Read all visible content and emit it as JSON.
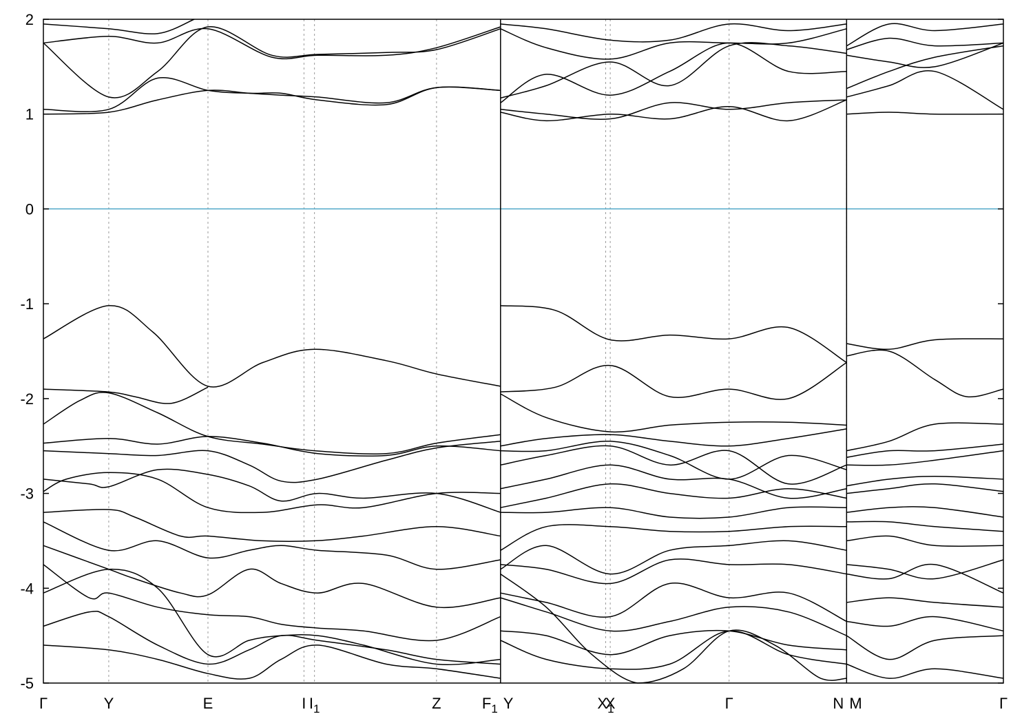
{
  "chart_data": {
    "type": "line",
    "title": "",
    "xlabel": "",
    "ylabel": "",
    "ylim": [
      -5,
      2
    ],
    "y_ticks": [
      "2",
      "1",
      "0",
      "-1",
      "-2",
      "-3",
      "-4",
      "-5"
    ],
    "k_points": [
      {
        "label": "Γ",
        "x": 0
      },
      {
        "label": "Y",
        "x": 0.143
      },
      {
        "label": "E",
        "x": 0.36
      },
      {
        "label": "I",
        "x": 0.57
      },
      {
        "label": "I",
        "sub": "1",
        "x": 0.593
      },
      {
        "label": "Z",
        "x": 0.86
      },
      {
        "label": "F",
        "sub": "1",
        "x": 1.0
      },
      {
        "label": "Y",
        "x": 1.0
      },
      {
        "label": "X",
        "sub": "1",
        "x": 1.23
      },
      {
        "label": "X",
        "x": 1.24
      },
      {
        "label": "Γ",
        "x": 1.5
      },
      {
        "label": "N",
        "x": 1.757
      },
      {
        "label": "M",
        "x": 1.757
      },
      {
        "label": "Γ",
        "x": 2.1
      }
    ],
    "segment_breaks": [
      1.0,
      1.757
    ],
    "fermi_level": {
      "y": 0,
      "color": "#4fa8c8"
    },
    "line_color": "#000000",
    "grid": "vertical-dotted-at-k-points",
    "series": [
      {
        "x": [
          0,
          0.143,
          0.24,
          0.36,
          0.48,
          0.593,
          0.75,
          0.86,
          1.0
        ],
        "y": [
          -1.37,
          -1.02,
          -1.3,
          -1.87,
          -1.62,
          -1.48,
          -1.6,
          -1.74,
          -1.87
        ]
      },
      {
        "x": [
          0,
          0.143,
          0.2,
          0.28,
          0.36
        ],
        "y": [
          -1.9,
          -1.93,
          -1.98,
          -2.05,
          -1.88
        ]
      },
      {
        "x": [
          0,
          0.08,
          0.143,
          0.25,
          0.36,
          0.48,
          0.593,
          0.75,
          0.86,
          1.0
        ],
        "y": [
          -2.27,
          -2.02,
          -1.94,
          -2.15,
          -2.4,
          -2.48,
          -2.55,
          -2.58,
          -2.47,
          -2.38
        ]
      },
      {
        "x": [
          0,
          0.143,
          0.25,
          0.36,
          0.48,
          0.6,
          0.75,
          0.86,
          1.0
        ],
        "y": [
          -2.47,
          -2.42,
          -2.48,
          -2.4,
          -2.47,
          -2.58,
          -2.6,
          -2.5,
          -2.55
        ]
      },
      {
        "x": [
          0,
          0.143,
          0.25,
          0.36,
          0.45,
          0.52,
          0.6,
          0.75,
          0.86,
          1.0
        ],
        "y": [
          -2.55,
          -2.58,
          -2.6,
          -2.55,
          -2.7,
          -2.87,
          -2.85,
          -2.65,
          -2.52,
          -2.45
        ]
      },
      {
        "x": [
          0,
          0.1,
          0.143,
          0.25,
          0.36,
          0.45,
          0.52,
          0.6,
          0.7,
          0.86,
          1.0
        ],
        "y": [
          -2.85,
          -2.9,
          -2.93,
          -2.75,
          -2.8,
          -2.92,
          -3.08,
          -3.0,
          -3.05,
          -3.0,
          -3.2
        ]
      },
      {
        "x": [
          0,
          0.05,
          0.143,
          0.25,
          0.36,
          0.48,
          0.6,
          0.7,
          0.86,
          1.0
        ],
        "y": [
          -2.98,
          -2.85,
          -2.78,
          -2.85,
          -3.15,
          -3.2,
          -3.12,
          -3.15,
          -3.0,
          -3.0
        ]
      },
      {
        "x": [
          0,
          0.143,
          0.2,
          0.3,
          0.36,
          0.48,
          0.593,
          0.7,
          0.86,
          1.0
        ],
        "y": [
          -3.2,
          -3.17,
          -3.25,
          -3.45,
          -3.45,
          -3.5,
          -3.5,
          -3.45,
          -3.35,
          -3.45
        ]
      },
      {
        "x": [
          0,
          0.143,
          0.25,
          0.36,
          0.45,
          0.52,
          0.6,
          0.75,
          0.86,
          1.0
        ],
        "y": [
          -3.3,
          -3.6,
          -3.5,
          -3.68,
          -3.6,
          -3.55,
          -3.6,
          -3.65,
          -3.8,
          -3.7
        ]
      },
      {
        "x": [
          0,
          0.143,
          0.2,
          0.3,
          0.36,
          0.45,
          0.52,
          0.6,
          0.7,
          0.86,
          1.0
        ],
        "y": [
          -3.55,
          -3.8,
          -3.9,
          -4.05,
          -4.07,
          -3.8,
          -3.95,
          -4.05,
          -3.95,
          -4.2,
          -4.1
        ]
      },
      {
        "x": [
          0,
          0.1,
          0.143,
          0.25,
          0.36,
          0.45,
          0.52,
          0.6,
          0.7,
          0.86,
          1.0
        ],
        "y": [
          -3.75,
          -4.1,
          -4.05,
          -4.2,
          -4.28,
          -4.3,
          -4.38,
          -4.42,
          -4.45,
          -4.55,
          -4.3
        ]
      },
      {
        "x": [
          0,
          0.143,
          0.25,
          0.36,
          0.45,
          0.52,
          0.6,
          0.7,
          0.86,
          1.0
        ],
        "y": [
          -4.05,
          -3.8,
          -4.0,
          -4.7,
          -4.55,
          -4.5,
          -4.5,
          -4.6,
          -4.8,
          -4.75
        ]
      },
      {
        "x": [
          0,
          0.1,
          0.143,
          0.25,
          0.36,
          0.45,
          0.52,
          0.6,
          0.75,
          0.86,
          1.0
        ],
        "y": [
          -4.4,
          -4.25,
          -4.3,
          -4.6,
          -4.8,
          -4.65,
          -4.5,
          -4.55,
          -4.65,
          -4.75,
          -4.8
        ]
      },
      {
        "x": [
          0,
          0.143,
          0.25,
          0.36,
          0.45,
          0.52,
          0.6,
          0.75,
          0.86,
          1.0
        ],
        "y": [
          -4.6,
          -4.65,
          -4.75,
          -4.9,
          -4.95,
          -4.75,
          -4.6,
          -4.8,
          -4.85,
          -4.95
        ]
      },
      {
        "x": [
          0,
          0.143,
          0.25,
          0.36,
          0.45,
          0.52,
          0.6,
          0.75,
          0.86,
          1.0
        ],
        "y": [
          1.0,
          1.02,
          1.15,
          1.25,
          1.22,
          1.2,
          1.18,
          1.12,
          1.28,
          1.25
        ]
      },
      {
        "x": [
          0,
          0.143,
          0.25,
          0.36,
          0.45,
          0.52,
          0.6,
          0.75,
          0.86,
          1.0
        ],
        "y": [
          1.05,
          1.05,
          1.38,
          1.25,
          1.22,
          1.22,
          1.15,
          1.1,
          1.28,
          1.25
        ]
      },
      {
        "x": [
          0,
          0.143,
          0.25,
          0.36,
          0.5,
          0.6,
          0.75,
          0.86,
          1.0
        ],
        "y": [
          1.75,
          1.18,
          1.45,
          1.92,
          1.62,
          1.63,
          1.65,
          1.68,
          1.9
        ]
      },
      {
        "x": [
          0,
          0.143,
          0.25,
          0.36,
          0.5,
          0.6,
          0.75,
          0.86,
          1.0
        ],
        "y": [
          1.75,
          1.82,
          1.75,
          1.9,
          1.6,
          1.62,
          1.62,
          1.7,
          1.92
        ]
      },
      {
        "x": [
          0,
          0.143,
          0.25,
          0.33
        ],
        "y": [
          1.95,
          1.9,
          1.85,
          2.0
        ]
      },
      {
        "x": [
          1.0,
          1.12,
          1.24,
          1.37,
          1.5,
          1.63,
          1.757
        ],
        "y": [
          -1.02,
          -1.07,
          -1.38,
          -1.33,
          -1.37,
          -1.25,
          -1.62
        ]
      },
      {
        "x": [
          1.0,
          1.12,
          1.24,
          1.37,
          1.5,
          1.63,
          1.757
        ],
        "y": [
          -1.93,
          -1.88,
          -1.65,
          -1.98,
          -1.9,
          -2.0,
          -1.62
        ]
      },
      {
        "x": [
          1.0,
          1.1,
          1.24,
          1.37,
          1.5,
          1.63,
          1.757
        ],
        "y": [
          -1.95,
          -2.2,
          -2.35,
          -2.28,
          -2.25,
          -2.25,
          -2.28
        ]
      },
      {
        "x": [
          1.0,
          1.1,
          1.24,
          1.37,
          1.5,
          1.63,
          1.757
        ],
        "y": [
          -2.5,
          -2.42,
          -2.38,
          -2.45,
          -2.5,
          -2.42,
          -2.32
        ]
      },
      {
        "x": [
          1.0,
          1.1,
          1.24,
          1.37,
          1.5,
          1.63,
          1.757
        ],
        "y": [
          -2.55,
          -2.55,
          -2.45,
          -2.6,
          -2.85,
          -2.6,
          -2.75
        ]
      },
      {
        "x": [
          1.0,
          1.1,
          1.24,
          1.37,
          1.5,
          1.63,
          1.757
        ],
        "y": [
          -2.7,
          -2.6,
          -2.5,
          -2.7,
          -2.55,
          -2.9,
          -2.7
        ]
      },
      {
        "x": [
          1.0,
          1.1,
          1.24,
          1.37,
          1.5,
          1.63,
          1.757
        ],
        "y": [
          -2.95,
          -2.85,
          -2.7,
          -2.85,
          -2.85,
          -3.05,
          -2.95
        ]
      },
      {
        "x": [
          1.0,
          1.1,
          1.24,
          1.37,
          1.5,
          1.63,
          1.757
        ],
        "y": [
          -3.15,
          -3.05,
          -2.9,
          -3.0,
          -3.05,
          -2.95,
          -3.05
        ]
      },
      {
        "x": [
          1.0,
          1.1,
          1.24,
          1.37,
          1.5,
          1.63,
          1.757
        ],
        "y": [
          -3.2,
          -3.2,
          -3.15,
          -3.25,
          -3.25,
          -3.15,
          -3.15
        ]
      },
      {
        "x": [
          1.0,
          1.1,
          1.24,
          1.37,
          1.5,
          1.63,
          1.757
        ],
        "y": [
          -3.6,
          -3.35,
          -3.35,
          -3.4,
          -3.4,
          -3.35,
          -3.35
        ]
      },
      {
        "x": [
          1.0,
          1.1,
          1.24,
          1.37,
          1.5,
          1.63,
          1.757
        ],
        "y": [
          -3.8,
          -3.55,
          -3.85,
          -3.6,
          -3.55,
          -3.5,
          -3.6
        ]
      },
      {
        "x": [
          1.0,
          1.1,
          1.24,
          1.37,
          1.5,
          1.63,
          1.757
        ],
        "y": [
          -3.75,
          -3.8,
          -3.95,
          -3.7,
          -3.75,
          -3.75,
          -3.85
        ]
      },
      {
        "x": [
          1.0,
          1.1,
          1.24,
          1.37,
          1.5,
          1.63,
          1.757
        ],
        "y": [
          -4.05,
          -4.15,
          -4.3,
          -3.95,
          -4.1,
          -4.05,
          -4.35
        ]
      },
      {
        "x": [
          1.0,
          1.1,
          1.24,
          1.37,
          1.5,
          1.63,
          1.757
        ],
        "y": [
          -4.1,
          -4.25,
          -4.45,
          -4.35,
          -4.2,
          -4.25,
          -4.5
        ]
      },
      {
        "x": [
          1.0,
          1.1,
          1.24,
          1.37,
          1.5,
          1.63,
          1.757
        ],
        "y": [
          -4.45,
          -4.5,
          -4.7,
          -4.5,
          -4.45,
          -4.6,
          -4.65
        ]
      },
      {
        "x": [
          1.0,
          1.1,
          1.24,
          1.37,
          1.5,
          1.63,
          1.757
        ],
        "y": [
          -4.55,
          -4.75,
          -4.85,
          -4.8,
          -4.45,
          -4.7,
          -4.8
        ]
      },
      {
        "x": [
          1.0,
          1.1,
          1.2,
          1.3,
          1.4,
          1.5,
          1.6,
          1.7,
          1.757
        ],
        "y": [
          -3.85,
          -4.2,
          -4.7,
          -5.0,
          -4.85,
          -4.45,
          -4.6,
          -4.95,
          -4.95
        ]
      },
      {
        "x": [
          1.0,
          1.1,
          1.24,
          1.37,
          1.5,
          1.63,
          1.757
        ],
        "y": [
          1.05,
          1.0,
          0.95,
          1.12,
          1.05,
          1.12,
          1.15
        ]
      },
      {
        "x": [
          1.0,
          1.1,
          1.24,
          1.37,
          1.5,
          1.63,
          1.757
        ],
        "y": [
          1.02,
          0.93,
          1.0,
          0.95,
          1.08,
          0.93,
          1.15
        ]
      },
      {
        "x": [
          1.0,
          1.1,
          1.24,
          1.37,
          1.5,
          1.63,
          1.757
        ],
        "y": [
          1.12,
          1.42,
          1.2,
          1.45,
          1.75,
          1.45,
          1.45
        ]
      },
      {
        "x": [
          1.0,
          1.1,
          1.24,
          1.37,
          1.5,
          1.63,
          1.757
        ],
        "y": [
          1.17,
          1.3,
          1.55,
          1.3,
          1.72,
          1.72,
          1.64
        ]
      },
      {
        "x": [
          1.0,
          1.1,
          1.24,
          1.37,
          1.5,
          1.63,
          1.757
        ],
        "y": [
          1.9,
          1.7,
          1.58,
          1.75,
          1.75,
          1.75,
          1.9
        ]
      },
      {
        "x": [
          1.0,
          1.1,
          1.24,
          1.37,
          1.5,
          1.63,
          1.757
        ],
        "y": [
          1.95,
          1.9,
          1.78,
          1.78,
          1.95,
          1.88,
          1.95
        ]
      },
      {
        "x": [
          1.757,
          1.85,
          1.95,
          2.1
        ],
        "y": [
          -1.42,
          -1.48,
          -1.38,
          -1.37
        ]
      },
      {
        "x": [
          1.757,
          1.85,
          1.95,
          2.02,
          2.1
        ],
        "y": [
          -1.55,
          -1.5,
          -1.8,
          -1.98,
          -1.9
        ]
      },
      {
        "x": [
          1.757,
          1.85,
          1.95,
          2.1
        ],
        "y": [
          -2.55,
          -2.45,
          -2.27,
          -2.27
        ]
      },
      {
        "x": [
          1.757,
          1.85,
          1.95,
          2.1
        ],
        "y": [
          -2.62,
          -2.55,
          -2.55,
          -2.48
        ]
      },
      {
        "x": [
          1.757,
          1.85,
          1.95,
          2.1
        ],
        "y": [
          -2.7,
          -2.7,
          -2.65,
          -2.55
        ]
      },
      {
        "x": [
          1.757,
          1.85,
          1.95,
          2.1
        ],
        "y": [
          -2.92,
          -2.85,
          -2.82,
          -2.85
        ]
      },
      {
        "x": [
          1.757,
          1.85,
          1.95,
          2.1
        ],
        "y": [
          -3.0,
          -2.95,
          -2.9,
          -2.98
        ]
      },
      {
        "x": [
          1.757,
          1.85,
          1.95,
          2.1
        ],
        "y": [
          -3.2,
          -3.15,
          -3.15,
          -3.25
        ]
      },
      {
        "x": [
          1.757,
          1.85,
          1.95,
          2.1
        ],
        "y": [
          -3.3,
          -3.3,
          -3.35,
          -3.4
        ]
      },
      {
        "x": [
          1.757,
          1.85,
          1.95,
          2.1
        ],
        "y": [
          -3.5,
          -3.45,
          -3.55,
          -3.55
        ]
      },
      {
        "x": [
          1.757,
          1.85,
          1.95,
          2.1
        ],
        "y": [
          -3.75,
          -3.8,
          -3.9,
          -3.7
        ]
      },
      {
        "x": [
          1.757,
          1.85,
          1.95,
          2.1
        ],
        "y": [
          -3.85,
          -3.9,
          -3.75,
          -4.05
        ]
      },
      {
        "x": [
          1.757,
          1.85,
          1.95,
          2.1
        ],
        "y": [
          -4.15,
          -4.1,
          -4.15,
          -4.2
        ]
      },
      {
        "x": [
          1.757,
          1.85,
          1.95,
          2.1
        ],
        "y": [
          -4.35,
          -4.4,
          -4.3,
          -4.45
        ]
      },
      {
        "x": [
          1.757,
          1.85,
          1.95,
          2.1
        ],
        "y": [
          -4.5,
          -4.75,
          -4.55,
          -4.5
        ]
      },
      {
        "x": [
          1.757,
          1.85,
          1.95,
          2.1
        ],
        "y": [
          -4.8,
          -4.95,
          -4.85,
          -4.95
        ]
      },
      {
        "x": [
          1.757,
          1.85,
          1.95,
          2.1
        ],
        "y": [
          1.0,
          1.02,
          1.0,
          1.0
        ]
      },
      {
        "x": [
          1.757,
          1.85,
          1.95,
          2.1
        ],
        "y": [
          1.18,
          1.3,
          1.45,
          1.05
        ]
      },
      {
        "x": [
          1.757,
          1.85,
          1.95,
          2.1
        ],
        "y": [
          1.27,
          1.45,
          1.6,
          1.72
        ]
      },
      {
        "x": [
          1.757,
          1.85,
          1.95,
          2.1
        ],
        "y": [
          1.62,
          1.55,
          1.5,
          1.75
        ]
      },
      {
        "x": [
          1.757,
          1.85,
          1.95,
          2.1
        ],
        "y": [
          1.68,
          1.8,
          1.72,
          1.75
        ]
      },
      {
        "x": [
          1.757,
          1.85,
          1.95,
          2.1
        ],
        "y": [
          1.72,
          1.95,
          1.88,
          1.95
        ]
      }
    ]
  }
}
